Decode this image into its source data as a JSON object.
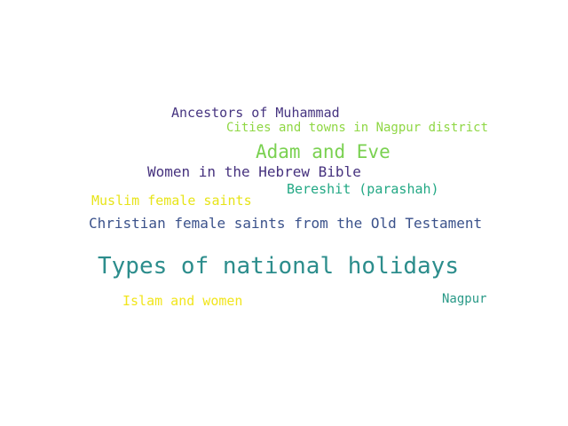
{
  "word_cloud": {
    "words": [
      {
        "text": "Ancestors of Muhammad",
        "color": "#463480"
      },
      {
        "text": "Cities and towns in Nagpur district",
        "color": "#8fd744"
      },
      {
        "text": "Adam and Eve",
        "color": "#7ad151"
      },
      {
        "text": "Women in the Hebrew Bible",
        "color": "#46327e"
      },
      {
        "text": "Bereshit (parashah)",
        "color": "#22a884"
      },
      {
        "text": "Muslim female saints",
        "color": "#e7e419"
      },
      {
        "text": "Christian female saints from the Old Testament",
        "color": "#3b528b"
      },
      {
        "text": "Types of national holidays",
        "color": "#2c8d8c"
      },
      {
        "text": "Islam and women",
        "color": "#f1e51d"
      },
      {
        "text": "Nagpur",
        "color": "#2a9a88"
      }
    ]
  }
}
